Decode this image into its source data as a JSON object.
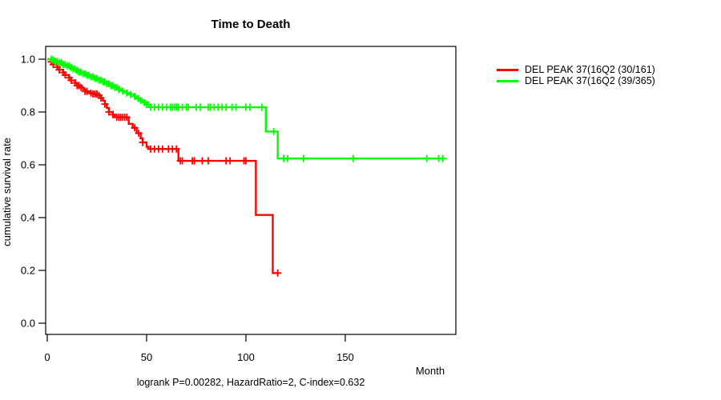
{
  "title": "Time to Death",
  "footer": "logrank P=0.00282, HazardRatio=2, C-index=0.632",
  "chart_data": {
    "type": "line",
    "subtype": "kaplan-meier-step",
    "title": "Time to Death",
    "xlabel": "Month",
    "ylabel": "cumulative survival rate",
    "xlim": [
      0,
      200
    ],
    "ylim": [
      0.0,
      1.0
    ],
    "xticks": [
      0,
      50,
      100,
      150
    ],
    "yticks": [
      0.0,
      0.2,
      0.4,
      0.6,
      0.8,
      1.0
    ],
    "grid": false,
    "legend_position": "right-outside",
    "annotation": "logrank P=0.00282, HazardRatio=2, C-index=0.632",
    "series": [
      {
        "name": "DEL PEAK 37(16Q2 (30/161)",
        "color": "#ff0000",
        "end_month": 116.5,
        "steps": [
          [
            0,
            1.0
          ],
          [
            2,
            0.99
          ],
          [
            3,
            0.98
          ],
          [
            5,
            0.97
          ],
          [
            6,
            0.96
          ],
          [
            8,
            0.95
          ],
          [
            9,
            0.94
          ],
          [
            11,
            0.93
          ],
          [
            12,
            0.92
          ],
          [
            14,
            0.91
          ],
          [
            15,
            0.9
          ],
          [
            17,
            0.893
          ],
          [
            18,
            0.885
          ],
          [
            19,
            0.878
          ],
          [
            21,
            0.872
          ],
          [
            23,
            0.868
          ],
          [
            26,
            0.863
          ],
          [
            27,
            0.853
          ],
          [
            28,
            0.843
          ],
          [
            29,
            0.83
          ],
          [
            30,
            0.815
          ],
          [
            31,
            0.8
          ],
          [
            33,
            0.79
          ],
          [
            34,
            0.78
          ],
          [
            41,
            0.755
          ],
          [
            43,
            0.74
          ],
          [
            45,
            0.72
          ],
          [
            47,
            0.7
          ],
          [
            48,
            0.685
          ],
          [
            50,
            0.668
          ],
          [
            51,
            0.66
          ],
          [
            66,
            0.615
          ],
          [
            105,
            0.41
          ],
          [
            113.5,
            0.19
          ]
        ],
        "censor_months": [
          2,
          3,
          5,
          6,
          8,
          9,
          11,
          12,
          14,
          15,
          16,
          17,
          19,
          20,
          22,
          23,
          24,
          25,
          26,
          27,
          29,
          31,
          33,
          35,
          36,
          37,
          38,
          39,
          40,
          44,
          46,
          48,
          52,
          54,
          56,
          58,
          61,
          63,
          65,
          67,
          68,
          73,
          74,
          78,
          81,
          90,
          92,
          99,
          100,
          116
        ]
      },
      {
        "name": "DEL PEAK 37(16Q2 (39/365)",
        "color": "#00ff00",
        "end_month": 199,
        "steps": [
          [
            0,
            1.0
          ],
          [
            3,
            0.997
          ],
          [
            4,
            0.992
          ],
          [
            6,
            0.986
          ],
          [
            8,
            0.98
          ],
          [
            10,
            0.975
          ],
          [
            12,
            0.969
          ],
          [
            13,
            0.963
          ],
          [
            15,
            0.957
          ],
          [
            16,
            0.951
          ],
          [
            18,
            0.945
          ],
          [
            20,
            0.939
          ],
          [
            22,
            0.933
          ],
          [
            24,
            0.927
          ],
          [
            26,
            0.921
          ],
          [
            28,
            0.914
          ],
          [
            30,
            0.907
          ],
          [
            32,
            0.9
          ],
          [
            34,
            0.893
          ],
          [
            36,
            0.886
          ],
          [
            38,
            0.879
          ],
          [
            40,
            0.872
          ],
          [
            42,
            0.866
          ],
          [
            44,
            0.859
          ],
          [
            45,
            0.851
          ],
          [
            47,
            0.844
          ],
          [
            48,
            0.836
          ],
          [
            50,
            0.828
          ],
          [
            52,
            0.818
          ],
          [
            110,
            0.726
          ],
          [
            116,
            0.624
          ]
        ],
        "censor_months": [
          2,
          3,
          4,
          5,
          6,
          7,
          8,
          9,
          10,
          11,
          12,
          13,
          14,
          15,
          16,
          17,
          18,
          19,
          20,
          21,
          22,
          23,
          24,
          25,
          26,
          27,
          28,
          29,
          30,
          31,
          32,
          33,
          34,
          35,
          36,
          38,
          40,
          42,
          44,
          46,
          47,
          49,
          50,
          51,
          52,
          54,
          56,
          58,
          60,
          62,
          63,
          64,
          65,
          66,
          68,
          70,
          71,
          75,
          77,
          81,
          82,
          84,
          86,
          88,
          90,
          93,
          95,
          100,
          102,
          108,
          114,
          119,
          121,
          129,
          154,
          191,
          197,
          199
        ]
      }
    ]
  }
}
